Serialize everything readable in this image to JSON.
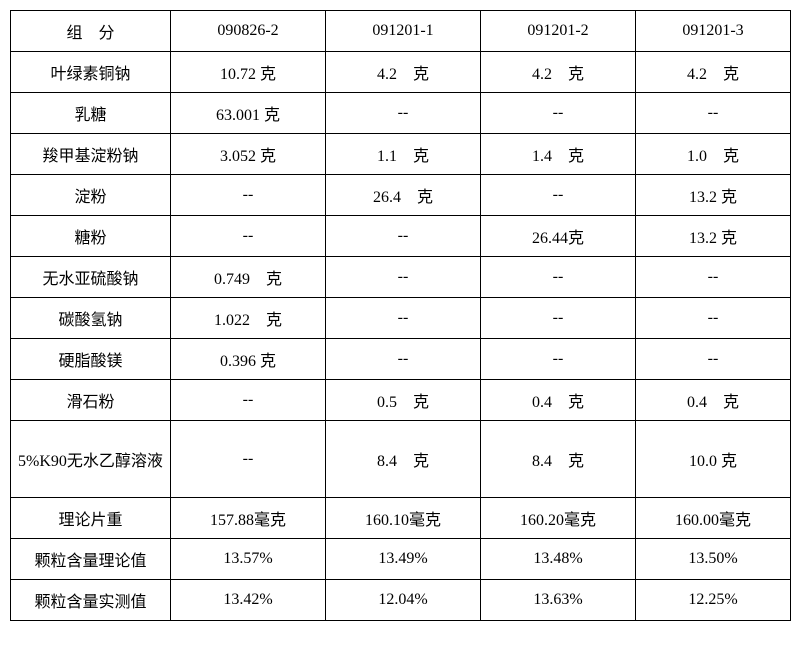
{
  "table": {
    "type": "table",
    "columns": [
      "组　分",
      "090826-2",
      "091201-1",
      "091201-2",
      "091201-3"
    ],
    "rows": [
      [
        "叶绿素铜钠",
        "10.72 克",
        "4.2　克",
        "4.2　克",
        "4.2　克"
      ],
      [
        "乳糖",
        "63.001 克",
        "--",
        "--",
        "--"
      ],
      [
        "羧甲基淀粉钠",
        "3.052 克",
        "1.1　克",
        "1.4　克",
        "1.0　克"
      ],
      [
        "淀粉",
        "--",
        "26.4　克",
        "--",
        "13.2 克"
      ],
      [
        "糖粉",
        "--",
        "--",
        "26.44克",
        "13.2 克"
      ],
      [
        "无水亚硫酸钠",
        "0.749　克",
        "--",
        "--",
        "--"
      ],
      [
        "碳酸氢钠",
        "1.022　克",
        "--",
        "--",
        "--"
      ],
      [
        "硬脂酸镁",
        "0.396 克",
        "--",
        "--",
        "--"
      ],
      [
        "滑石粉",
        "--",
        "0.5　克",
        "0.4　克",
        "0.4　克"
      ],
      [
        "5%K90无水乙醇溶液",
        "--",
        "8.4　克",
        "8.4　克",
        "10.0 克"
      ],
      [
        "理论片重",
        "157.88毫克",
        "160.10毫克",
        "160.20毫克",
        "160.00毫克"
      ],
      [
        "颗粒含量理论值",
        "13.57%",
        "13.49%",
        "13.48%",
        "13.50%"
      ],
      [
        "颗粒含量实测值",
        "13.42%",
        "12.04%",
        "13.63%",
        "12.25%"
      ]
    ],
    "border_color": "#000000",
    "background_color": "#ffffff",
    "text_color": "#000000",
    "font_size": 16,
    "tall_row_index": 9
  }
}
